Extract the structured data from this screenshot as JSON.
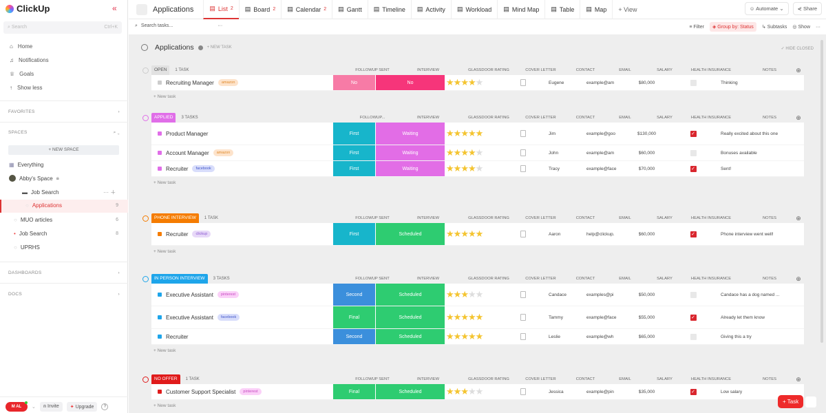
{
  "sidebar": {
    "brand": "ClickUp",
    "search_placeholder": "Search",
    "search_shortcut": "Ctrl+K",
    "nav": [
      {
        "label": "Home",
        "icon": "home-icon"
      },
      {
        "label": "Notifications",
        "icon": "bell-icon"
      },
      {
        "label": "Goals",
        "icon": "trophy-icon"
      },
      {
        "label": "Show less",
        "icon": "arrow-up-icon"
      }
    ],
    "favorites": "FAVORITES",
    "spaces": "SPACES",
    "new_space": "+ NEW SPACE",
    "everything": "Everything",
    "space_name": "Abby's Space",
    "folder": "Job Search",
    "lists": [
      {
        "label": "Applications",
        "count": "9"
      },
      {
        "label": "MUO articles",
        "count": "6"
      },
      {
        "label": "Job Search",
        "count": "8"
      },
      {
        "label": "UPRHS",
        "count": ""
      }
    ],
    "dashboards": "DASHBOARDS",
    "docs": "DOCS",
    "avatar_initials": "M  AL",
    "invite": "Invite",
    "upgrade": "Upgrade"
  },
  "topbar": {
    "title": "Applications",
    "views": [
      {
        "label": "List",
        "count": "2"
      },
      {
        "label": "Board",
        "count": "2"
      },
      {
        "label": "Calendar",
        "count": "2"
      },
      {
        "label": "Gantt",
        "count": ""
      },
      {
        "label": "Timeline",
        "count": ""
      },
      {
        "label": "Activity",
        "count": ""
      },
      {
        "label": "Workload",
        "count": ""
      },
      {
        "label": "Mind Map",
        "count": ""
      },
      {
        "label": "Table",
        "count": ""
      },
      {
        "label": "Map",
        "count": ""
      }
    ],
    "add_view": "+ View",
    "automate": "Automate",
    "share": "Share"
  },
  "toolbar": {
    "search_placeholder": "Search tasks...",
    "filter": "Filter",
    "group_by": "Group by: Status",
    "subtasks": "Subtasks",
    "show": "Show"
  },
  "list": {
    "title": "Applications",
    "new_task": "+ NEW TASK",
    "hide_closed": "✓ HIDE CLOSED",
    "row_new_task": "+ New task",
    "columns": [
      "FOLLOWUP SENT",
      "INTERVIEW",
      "GLASSDOOR RATING",
      "COVER LETTER",
      "CONTACT",
      "EMAIL",
      "SALARY",
      "HEALTH INSURANCE",
      "NOTES"
    ],
    "applied_followup_header": "FOLLOWUP..."
  },
  "colors": {
    "No_fu": "#f77ba6",
    "No_iv": "#f6357a",
    "First": "#17b5cb",
    "Waiting": "#e26de6",
    "Scheduled": "#2ecc71",
    "Second": "#3b8fdc",
    "Final": "#2ecc71"
  },
  "groups": [
    {
      "status": "OPEN",
      "count": "1 TASK",
      "color": "#e2e2e2",
      "text": "#555",
      "tasks": [
        {
          "name": "Recruiting Manager",
          "tag": "amazon",
          "followup": "No",
          "interview": "No",
          "rating": 4,
          "contact": "Eugene",
          "email": "example@am",
          "salary": "$80,000",
          "health": false,
          "notes": "Thinking"
        }
      ]
    },
    {
      "status": "APPLIED",
      "count": "3 TASKS",
      "color": "#e06ee8",
      "text": "#fff",
      "tasks": [
        {
          "name": "Product Manager",
          "tag": "",
          "followup": "First",
          "interview": "Waiting",
          "rating": 5,
          "contact": "Jim",
          "email": "example@goo",
          "salary": "$130,000",
          "health": true,
          "notes": "Really excited about this one"
        },
        {
          "name": "Account Manager",
          "tag": "amazon",
          "followup": "First",
          "interview": "Waiting",
          "rating": 4,
          "contact": "John",
          "email": "example@am",
          "salary": "$60,000",
          "health": false,
          "notes": "Bonuses available"
        },
        {
          "name": "Recruiter",
          "tag": "facebook",
          "followup": "First",
          "interview": "Waiting",
          "rating": 4,
          "contact": "Tracy",
          "email": "example@face",
          "salary": "$70,000",
          "health": true,
          "notes": "Sent!"
        }
      ]
    },
    {
      "status": "PHONE INTERVIEW",
      "count": "1 TASK",
      "color": "#f57c00",
      "text": "#fff",
      "tasks": [
        {
          "name": "Recruiter",
          "tag": "clickup",
          "followup": "First",
          "interview": "Scheduled",
          "rating": 5,
          "contact": "Aaron",
          "email": "help@clickup.",
          "salary": "$60,000",
          "health": true,
          "notes": "Phone interview went well!"
        }
      ]
    },
    {
      "status": "IN PERSON INTERVIEW",
      "count": "3 TASKS",
      "color": "#1ea5ea",
      "text": "#fff",
      "tasks": [
        {
          "name": "Executive Assistant",
          "tag": "pinterest",
          "followup": "Second",
          "interview": "Scheduled",
          "rating": 3,
          "contact": "Candace",
          "email": "examples@pi",
          "salary": "$50,000",
          "health": false,
          "notes": "Candace has a dog named ..."
        },
        {
          "name": "Executive Assistant",
          "tag": "facebook",
          "followup": "Final",
          "interview": "Scheduled",
          "rating": 5,
          "contact": "Tammy",
          "email": "example@face",
          "salary": "$55,000",
          "health": true,
          "notes": "Already let them know"
        },
        {
          "name": "Recruiter",
          "tag": "",
          "followup": "Second",
          "interview": "Scheduled",
          "rating": 5,
          "contact": "Leslie",
          "email": "example@wh",
          "salary": "$65,000",
          "health": false,
          "notes": "Giving this a try"
        }
      ]
    },
    {
      "status": "NO OFFER",
      "count": "1 TASK",
      "color": "#e01b1b",
      "text": "#fff",
      "tasks": [
        {
          "name": "Customer Support Specialist",
          "tag": "pinterest",
          "followup": "Final",
          "interview": "Scheduled",
          "rating": 3,
          "contact": "Jessica",
          "email": "example@pin",
          "salary": "$35,000",
          "health": true,
          "notes": "Low salary"
        }
      ]
    }
  ],
  "tags": {
    "amazon": {
      "bg": "#fde3cb",
      "fg": "#e08a2a"
    },
    "facebook": {
      "bg": "#d8ddfb",
      "fg": "#4458c9"
    },
    "pinterest": {
      "bg": "#fbd0f8",
      "fg": "#c64ac0"
    },
    "clickup": {
      "bg": "#e7d8f8",
      "fg": "#8a57d0"
    }
  },
  "fab": "+ Task"
}
